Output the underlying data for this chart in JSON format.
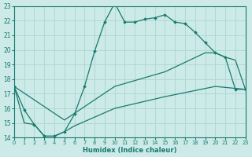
{
  "xlabel": "Humidex (Indice chaleur)",
  "xlim": [
    0,
    23
  ],
  "ylim": [
    14,
    23
  ],
  "yticks": [
    14,
    15,
    16,
    17,
    18,
    19,
    20,
    21,
    22,
    23
  ],
  "xticks": [
    0,
    1,
    2,
    3,
    4,
    5,
    6,
    7,
    8,
    9,
    10,
    11,
    12,
    13,
    14,
    15,
    16,
    17,
    18,
    19,
    20,
    21,
    22,
    23
  ],
  "bg_color": "#cceae8",
  "line_color": "#1a7a6e",
  "grid_color": "#b0d8d5",
  "line1_x": [
    0,
    1,
    2,
    3,
    4,
    5,
    6,
    7,
    8,
    9,
    10,
    11,
    12,
    13,
    14,
    15,
    16,
    17,
    18,
    19,
    20,
    21,
    22,
    23
  ],
  "line1_y": [
    17.5,
    15.9,
    14.9,
    14.1,
    14.1,
    14.4,
    15.6,
    17.5,
    19.9,
    21.9,
    23.2,
    21.9,
    21.9,
    22.1,
    22.2,
    22.4,
    21.9,
    21.8,
    21.2,
    20.5,
    19.8,
    19.5,
    17.3,
    17.3
  ],
  "line2_x": [
    0,
    5,
    10,
    15,
    19,
    20,
    21,
    22,
    23
  ],
  "line2_y": [
    17.5,
    15.2,
    17.5,
    18.5,
    19.8,
    19.8,
    19.5,
    19.3,
    17.3
  ],
  "line3_x": [
    0,
    1,
    2,
    3,
    4,
    5,
    6,
    7,
    8,
    9,
    10,
    15,
    20,
    23
  ],
  "line3_y": [
    17.5,
    15.0,
    14.9,
    14.1,
    14.1,
    14.4,
    14.8,
    15.1,
    15.4,
    15.7,
    16.0,
    16.8,
    17.5,
    17.3
  ]
}
